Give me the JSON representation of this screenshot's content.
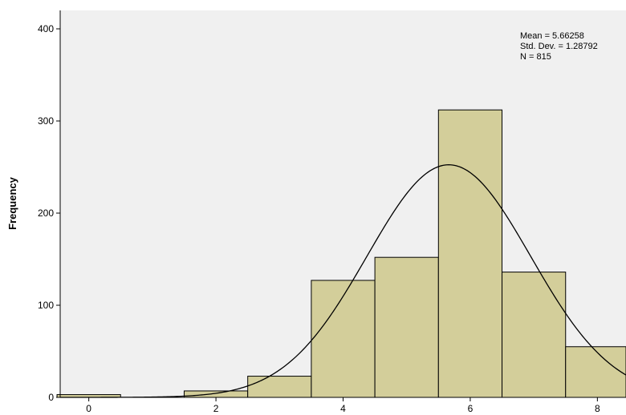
{
  "chart_data": {
    "type": "bar",
    "subtype": "histogram",
    "title": "",
    "xlabel": "",
    "ylabel": "Frequency",
    "xlim": [
      -0.45,
      8.45
    ],
    "ylim": [
      0,
      420
    ],
    "x_ticks": [
      0,
      2,
      4,
      6,
      8
    ],
    "y_ticks": [
      0,
      100,
      200,
      300,
      400
    ],
    "bin_width": 1,
    "bins": [
      {
        "center": 0,
        "value": 3
      },
      {
        "center": 1,
        "value": 0
      },
      {
        "center": 2,
        "value": 7
      },
      {
        "center": 3,
        "value": 23
      },
      {
        "center": 4,
        "value": 127
      },
      {
        "center": 5,
        "value": 152
      },
      {
        "center": 6,
        "value": 312
      },
      {
        "center": 7,
        "value": 136
      },
      {
        "center": 8,
        "value": 55
      }
    ],
    "normal_curve": {
      "mean": 5.66258,
      "sd": 1.28792,
      "n": 815
    },
    "stats_box": [
      "Mean = 5.66258",
      "Std. Dev. = 1.28792",
      "N = 815"
    ],
    "grid": false,
    "colors": {
      "plot_bg": "#f0f0f0",
      "bar_fill": "#d3ce9a",
      "bar_stroke": "#000000",
      "curve": "#000000"
    }
  }
}
